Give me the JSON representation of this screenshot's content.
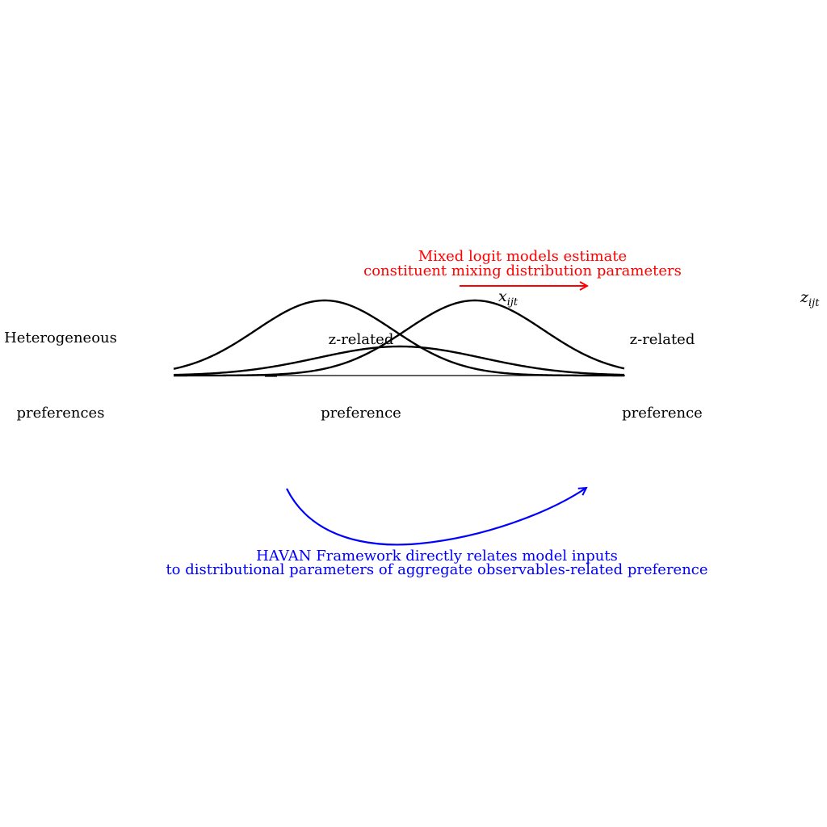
{
  "labels": {
    "heterogeneous": "Heterogeneous",
    "preferences": "preferences",
    "z_related_left": "z-related",
    "preference_left": "preference",
    "z_related_right": "z-related",
    "preference_right": "preference"
  },
  "math": {
    "x_var": "x",
    "x_sub": "ijt",
    "z_var": "z",
    "z_sub": "ijt"
  },
  "annotations": {
    "mixed_logit": {
      "line1": "Mixed logit models estimate",
      "line2": "constituent mixing distribution parameters",
      "color": "#ff0000"
    },
    "havan": {
      "line1": "HAVAN Framework directly relates model inputs",
      "line2": "to distributional parameters of aggregate observables-related preference",
      "color": "#0000ff"
    }
  },
  "icons": {
    "red_arrow": "arrow-right-icon",
    "blue_arrow": "curved-arrow-icon"
  }
}
